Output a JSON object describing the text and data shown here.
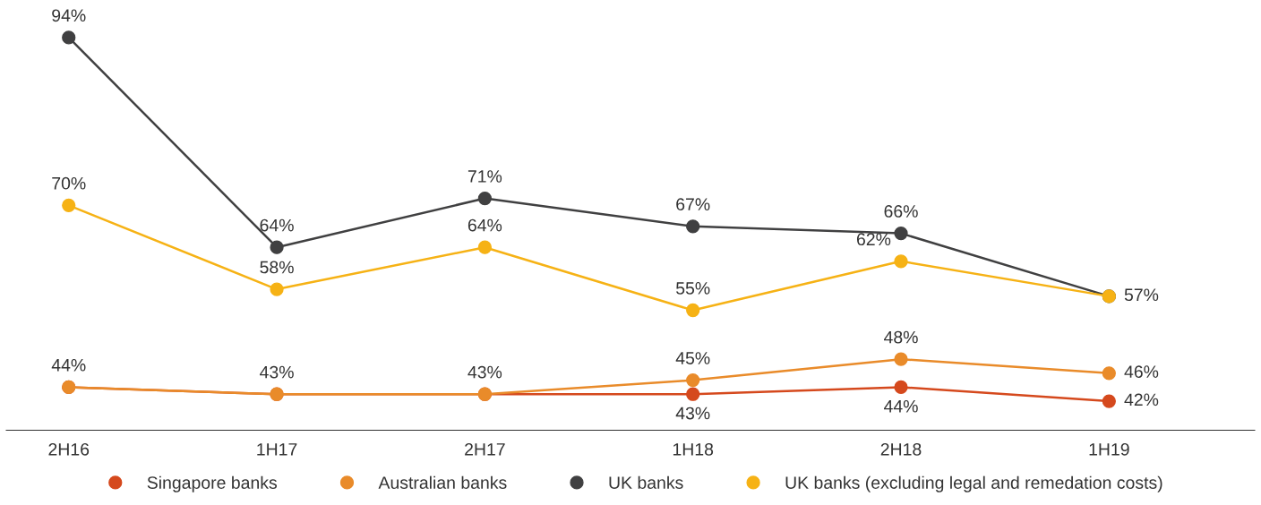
{
  "chart_data": {
    "type": "line",
    "categories": [
      "2H16",
      "1H17",
      "2H17",
      "1H18",
      "2H18",
      "1H19"
    ],
    "series": [
      {
        "name": "Singapore banks",
        "color": "#d5491d",
        "values": [
          44,
          43,
          43,
          43,
          44,
          42
        ],
        "value_labels": [
          "44%",
          "43%",
          "43%",
          "43%",
          "44%",
          "42%"
        ]
      },
      {
        "name": "Australian banks",
        "color": "#e98b2a",
        "values": [
          44,
          43,
          43,
          45,
          48,
          46
        ],
        "value_labels": [
          null,
          null,
          null,
          "45%",
          "48%",
          "46%"
        ]
      },
      {
        "name": "UK banks",
        "color": "#404041",
        "values": [
          94,
          64,
          71,
          67,
          66,
          57
        ],
        "value_labels": [
          "94%",
          "64%",
          "71%",
          "67%",
          "66%",
          "57%"
        ]
      },
      {
        "name": "UK banks (excluding legal and remedation costs)",
        "color": "#f6b215",
        "values": [
          70,
          58,
          64,
          55,
          62,
          57
        ],
        "value_labels": [
          "70%",
          "58%",
          "64%",
          "55%",
          "62%",
          null
        ]
      }
    ],
    "tick_labels": "x",
    "grid": false,
    "legend": "bottom",
    "marker": "circle",
    "line_style": "solid"
  }
}
